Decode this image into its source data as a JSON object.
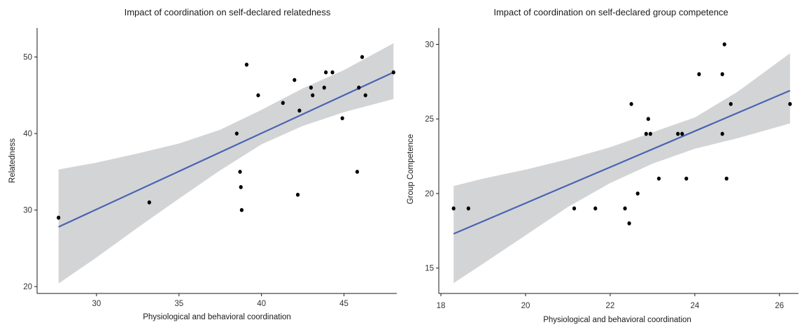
{
  "chart_data": [
    {
      "type": "scatter",
      "title": "Impact of coordination on self-declared relatedness",
      "xlabel": "Physiological and behavioral coordination",
      "ylabel": "Relatedness",
      "xlim": [
        26.4,
        48.2
      ],
      "ylim": [
        19.1,
        53.8
      ],
      "xticks": [
        "30",
        "35",
        "40",
        "45"
      ],
      "yticks": [
        "20",
        "30",
        "40",
        "50"
      ],
      "grid": false,
      "points": [
        [
          27.7,
          29
        ],
        [
          33.2,
          31
        ],
        [
          38.5,
          40
        ],
        [
          38.7,
          35
        ],
        [
          38.75,
          33
        ],
        [
          38.8,
          30
        ],
        [
          39.1,
          49
        ],
        [
          39.8,
          45
        ],
        [
          41.3,
          44
        ],
        [
          42.0,
          47
        ],
        [
          42.2,
          32
        ],
        [
          42.3,
          43
        ],
        [
          43.0,
          46
        ],
        [
          43.1,
          45
        ],
        [
          43.8,
          46
        ],
        [
          43.9,
          48
        ],
        [
          44.3,
          48
        ],
        [
          44.9,
          42
        ],
        [
          45.8,
          35
        ],
        [
          45.9,
          46
        ],
        [
          46.1,
          50
        ],
        [
          46.3,
          45
        ],
        [
          48.0,
          48
        ]
      ],
      "fit": {
        "x": [
          27.7,
          48.0
        ],
        "y": [
          27.8,
          48.0
        ]
      },
      "band": {
        "x": [
          27.7,
          30,
          32.5,
          35,
          37.5,
          40,
          42.5,
          45,
          48
        ],
        "upper": [
          35.3,
          36.2,
          37.4,
          38.7,
          40.5,
          43.1,
          45.9,
          48.3,
          51.8
        ],
        "lower": [
          20.4,
          23.8,
          27.7,
          31.5,
          35.2,
          38.6,
          41.0,
          42.8,
          44.5
        ]
      }
    },
    {
      "type": "scatter",
      "title": "Impact of coordination on self-declared group competence",
      "xlabel": "Physiological and behavioral coordination",
      "ylabel": "Group Competence",
      "xlim": [
        17.95,
        26.45
      ],
      "ylim": [
        13.3,
        31.1
      ],
      "xticks": [
        "18",
        "20",
        "22",
        "24",
        "26"
      ],
      "yticks": [
        "15",
        "20",
        "25",
        "30"
      ],
      "grid": false,
      "points": [
        [
          18.3,
          19
        ],
        [
          18.65,
          19
        ],
        [
          21.15,
          19
        ],
        [
          21.65,
          19
        ],
        [
          22.35,
          19
        ],
        [
          22.45,
          18
        ],
        [
          22.5,
          26
        ],
        [
          22.65,
          20
        ],
        [
          22.85,
          24
        ],
        [
          22.9,
          25
        ],
        [
          22.95,
          24
        ],
        [
          23.15,
          21
        ],
        [
          23.6,
          24
        ],
        [
          23.7,
          24
        ],
        [
          23.8,
          21
        ],
        [
          24.1,
          28
        ],
        [
          24.65,
          28
        ],
        [
          24.65,
          24
        ],
        [
          24.7,
          30
        ],
        [
          24.75,
          21
        ],
        [
          24.85,
          26
        ],
        [
          26.25,
          26
        ]
      ],
      "fit": {
        "x": [
          18.3,
          26.25
        ],
        "y": [
          17.3,
          26.9
        ]
      },
      "band": {
        "x": [
          18.3,
          19,
          20,
          21,
          22,
          23,
          24,
          25,
          26.25
        ],
        "upper": [
          20.5,
          21.0,
          21.6,
          22.3,
          23.1,
          24.1,
          25.1,
          26.8,
          29.4
        ],
        "lower": [
          14.0,
          15.3,
          17.2,
          19.1,
          20.7,
          22.0,
          23.0,
          23.7,
          24.7
        ]
      }
    }
  ]
}
